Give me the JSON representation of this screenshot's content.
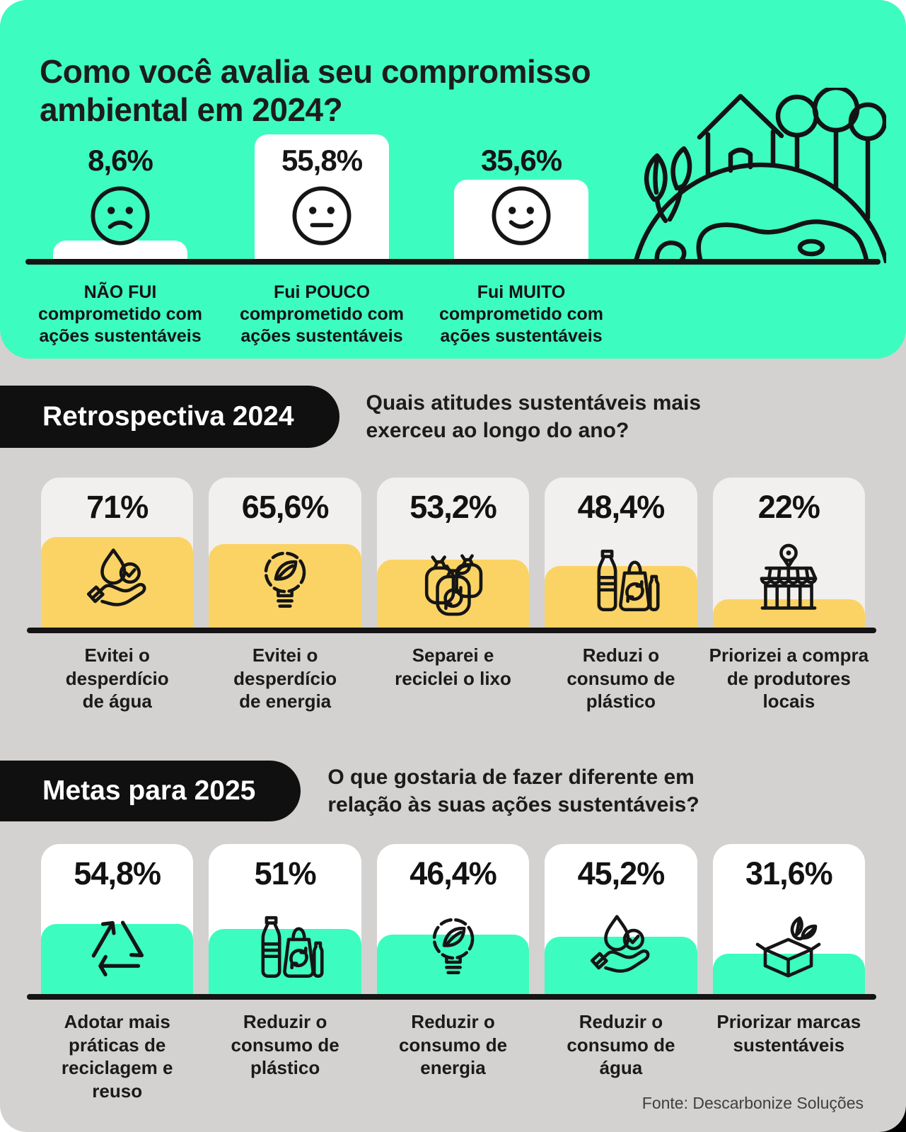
{
  "colors": {
    "mint": "#3DFCBF",
    "yellow": "#FBD365",
    "background_gray": "#D3D2D1",
    "card_light": "#F2F0EE",
    "card_white": "#FFFFFF",
    "pill_black": "#101010",
    "text": "#1C1C1B"
  },
  "header": {
    "title": "Como você avalia seu compromisso\nambiental em 2024?",
    "illustration": "earth-house-trees-illustration",
    "bars": [
      {
        "value_label": "8,6%",
        "pct": 8.6,
        "face_icon": "sad-face-icon",
        "label": "NÃO FUI\ncomprometido com\nações sustentáveis"
      },
      {
        "value_label": "55,8%",
        "pct": 55.8,
        "face_icon": "neutral-face-icon",
        "label": "Fui POUCO\ncomprometido com\nações sustentáveis"
      },
      {
        "value_label": "35,6%",
        "pct": 35.6,
        "face_icon": "happy-face-icon",
        "label": "Fui MUITO\ncomprometido com\nações sustentáveis"
      }
    ]
  },
  "sections": [
    {
      "badge": "Retrospectiva 2024",
      "question": "Quais atitudes sustentáveis mais\nexerceu ao longo do ano?",
      "accent_color": "#FBD365",
      "cards": [
        {
          "value_label": "71%",
          "pct": 71,
          "icon": "hand-water-drop-check-icon",
          "label": "Evitei o\ndesperdício\nde água"
        },
        {
          "value_label": "65,6%",
          "pct": 65.6,
          "icon": "eco-light-bulb-icon",
          "label": "Evitei o\ndesperdício\nde energia"
        },
        {
          "value_label": "53,2%",
          "pct": 53.2,
          "icon": "trash-bags-recycle-icon",
          "label": "Separei e\nreciclei o lixo"
        },
        {
          "value_label": "48,4%",
          "pct": 48.4,
          "icon": "plastic-bottle-bag-icon",
          "label": "Reduzi o\nconsumo de\nplástico"
        },
        {
          "value_label": "22%",
          "pct": 22,
          "icon": "local-store-icon",
          "label": "Priorizei a compra\nde produtores\nlocais"
        }
      ]
    },
    {
      "badge": "Metas para 2025",
      "question": "O que gostaria de fazer diferente em\nrelação às suas ações sustentáveis?",
      "accent_color": "#3DFCBF",
      "cards": [
        {
          "value_label": "54,8%",
          "pct": 54.8,
          "icon": "recycle-arrows-icon",
          "label": "Adotar mais\npráticas de\nreciclagem e\nreuso"
        },
        {
          "value_label": "51%",
          "pct": 51,
          "icon": "plastic-bottle-bag-icon",
          "label": "Reduzir o\nconsumo de\nplástico"
        },
        {
          "value_label": "46,4%",
          "pct": 46.4,
          "icon": "eco-light-bulb-icon",
          "label": "Reduzir o\nconsumo de\nenergia"
        },
        {
          "value_label": "45,2%",
          "pct": 45.2,
          "icon": "hand-water-drop-check-icon",
          "label": "Reduzir o\nconsumo de\nágua"
        },
        {
          "value_label": "31,6%",
          "pct": 31.6,
          "icon": "sustainable-box-leaves-icon",
          "label": "Priorizar marcas\nsustentáveis"
        }
      ]
    }
  ],
  "footer": {
    "source": "Fonte: Descarbonize Soluções"
  },
  "chart_data": [
    {
      "type": "bar",
      "title": "Como você avalia seu compromisso ambiental em 2024?",
      "categories": [
        "NÃO FUI comprometido com ações sustentáveis",
        "Fui POUCO comprometido com ações sustentáveis",
        "Fui MUITO comprometido com ações sustentáveis"
      ],
      "values": [
        8.6,
        55.8,
        35.6
      ],
      "unit": "%",
      "ylim": [
        0,
        100
      ],
      "grid": false,
      "legend": false,
      "bar_color": "#FFFFFF"
    },
    {
      "type": "bar",
      "title": "Retrospectiva 2024 — Quais atitudes sustentáveis mais exerceu ao longo do ano?",
      "categories": [
        "Evitei o desperdício de água",
        "Evitei o desperdício de energia",
        "Separei e reciclei o lixo",
        "Reduzi o consumo de plástico",
        "Priorizei a compra de produtores locais"
      ],
      "values": [
        71,
        65.6,
        53.2,
        48.4,
        22
      ],
      "unit": "%",
      "ylim": [
        0,
        100
      ],
      "grid": false,
      "legend": false,
      "bar_color": "#FBD365"
    },
    {
      "type": "bar",
      "title": "Metas para 2025 — O que gostaria de fazer diferente em relação às suas ações sustentáveis?",
      "categories": [
        "Adotar mais práticas de reciclagem e reuso",
        "Reduzir o consumo de plástico",
        "Reduzir o consumo de energia",
        "Reduzir o consumo de água",
        "Priorizar marcas sustentáveis"
      ],
      "values": [
        54.8,
        51,
        46.4,
        45.2,
        31.6
      ],
      "unit": "%",
      "ylim": [
        0,
        100
      ],
      "grid": false,
      "legend": false,
      "bar_color": "#3DFCBF"
    }
  ]
}
